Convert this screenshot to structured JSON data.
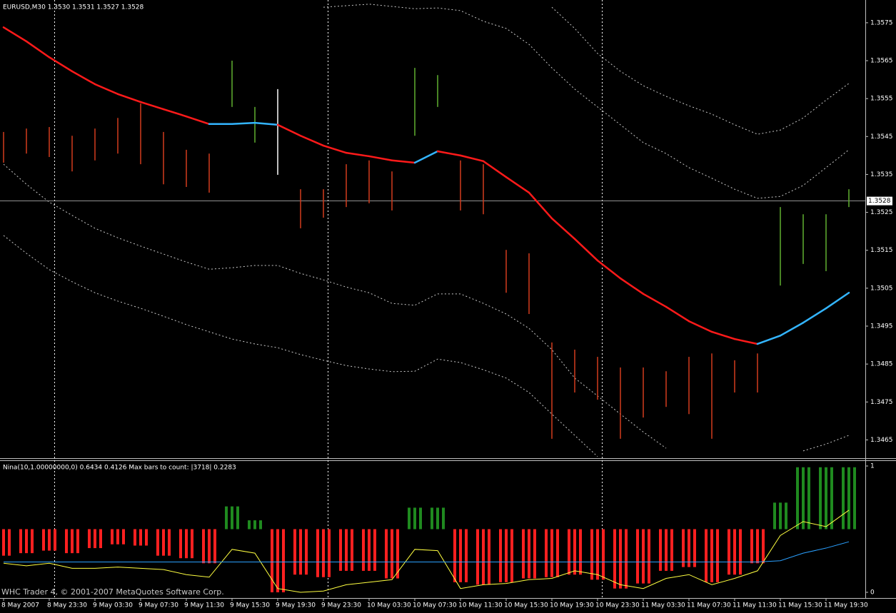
{
  "chart_data": [
    {
      "type": "ohlc",
      "title": "EURUSD,M30  1.3530 1.3531 1.3527 1.3528",
      "categories": [
        "8 May 2007",
        null,
        "8 May 23:30",
        null,
        "9 May 03:30",
        null,
        "9 May 07:30",
        null,
        "9 May 11:30",
        null,
        "9 May 15:30",
        null,
        "9 May 19:30",
        null,
        "9 May 23:30",
        null,
        "10 May 03:30",
        null,
        "10 May 07:30",
        null,
        "10 May 11:30",
        null,
        "10 May 15:30",
        null,
        "10 May 19:30",
        null,
        "10 May 23:30",
        null,
        "11 May 03:30",
        null,
        "11 May 07:30",
        null,
        "11 May 11:30",
        null,
        "11 May 15:30",
        null,
        "11 May 19:30",
        null
      ],
      "high": [
        1.35462,
        1.35471,
        1.35475,
        1.35452,
        1.35471,
        1.35499,
        1.35537,
        1.35462,
        1.35415,
        1.35405,
        1.3565,
        1.35528,
        1.35575,
        1.35311,
        1.35311,
        1.35377,
        1.35387,
        1.35358,
        1.35631,
        1.35612,
        1.35387,
        1.35377,
        1.35151,
        1.35142,
        1.34907,
        1.34888,
        1.34869,
        1.34841,
        1.34841,
        1.34831,
        1.34869,
        1.34878,
        1.3486,
        1.34878,
        1.35264,
        1.35245,
        1.35245,
        1.35311
      ],
      "low": [
        1.35381,
        1.35405,
        1.35396,
        1.35358,
        1.35387,
        1.35405,
        1.35377,
        1.35324,
        1.35317,
        1.35302,
        1.35528,
        1.35434,
        1.35349,
        1.35208,
        1.35236,
        1.35264,
        1.35274,
        1.35255,
        1.35452,
        1.35528,
        1.35255,
        1.35245,
        1.35038,
        1.34982,
        1.34653,
        1.34775,
        1.34756,
        1.34653,
        1.34709,
        1.34737,
        1.34718,
        1.34653,
        1.34775,
        1.34775,
        1.35057,
        1.35114,
        1.35095,
        1.35264
      ],
      "bar_colors": [
        "#d23c1e",
        "#d23c1e",
        "#d23c1e",
        "#d23c1e",
        "#d23c1e",
        "#d23c1e",
        "#d23c1e",
        "#d23c1e",
        "#d23c1e",
        "#d23c1e",
        "#60b030",
        "#60b030",
        "#ffffff",
        "#d23c1e",
        "#d23c1e",
        "#d23c1e",
        "#d23c1e",
        "#d23c1e",
        "#60b030",
        "#60b030",
        "#d23c1e",
        "#d23c1e",
        "#d23c1e",
        "#d23c1e",
        "#d23c1e",
        "#d23c1e",
        "#d23c1e",
        "#d23c1e",
        "#d23c1e",
        "#d23c1e",
        "#d23c1e",
        "#d23c1e",
        "#d23c1e",
        "#d23c1e",
        "#60b030",
        "#60b030",
        "#60b030",
        "#60b030"
      ],
      "ylim": [
        1.346,
        1.3581
      ],
      "yticks": [
        1.3575,
        1.3565,
        1.3555,
        1.3545,
        1.3535,
        1.3525,
        1.3515,
        1.3505,
        1.3495,
        1.3485,
        1.3475,
        1.3465
      ],
      "last_price": 1.3528,
      "last_price_color": "#c0c0c0",
      "lines": [
        {
          "color": "#ff1a1a",
          "style": "solid",
          "values": [
            1.35738,
            1.35701,
            1.35659,
            1.35622,
            1.35588,
            1.35562,
            1.35541,
            1.35522,
            1.35503,
            1.35483,
            1.35483,
            1.35486,
            1.35481,
            1.35452,
            1.35426,
            1.35407,
            1.35398,
            1.35387,
            1.35381,
            1.35411,
            1.354,
            1.35385,
            1.35343,
            1.35302,
            1.35234,
            1.3518,
            1.35123,
            1.35076,
            1.35035,
            1.35001,
            1.34963,
            1.34935,
            1.34916,
            1.34903,
            1.34925,
            1.34959,
            1.34997,
            1.35038
          ],
          "segment_colors": [
            "#ff1a1a",
            "#ff1a1a",
            "#ff1a1a",
            "#ff1a1a",
            "#ff1a1a",
            "#ff1a1a",
            "#ff1a1a",
            "#ff1a1a",
            "#ff1a1a",
            "#33b5ff",
            "#33b5ff",
            "#33b5ff",
            "#ff1a1a",
            "#ff1a1a",
            "#ff1a1a",
            "#ff1a1a",
            "#ff1a1a",
            "#ff1a1a",
            "#33b5ff",
            "#ff1a1a",
            "#ff1a1a",
            "#ff1a1a",
            "#ff1a1a",
            "#ff1a1a",
            "#ff1a1a",
            "#ff1a1a",
            "#ff1a1a",
            "#ff1a1a",
            "#ff1a1a",
            "#ff1a1a",
            "#ff1a1a",
            "#ff1a1a",
            "#ff1a1a",
            "#33b5ff",
            "#33b5ff",
            "#33b5ff",
            "#33b5ff",
            "#33b5ff"
          ]
        },
        {
          "color": "#c8c8c8",
          "style": "dotted",
          "values": [
            null,
            null,
            null,
            null,
            null,
            null,
            null,
            null,
            null,
            null,
            null,
            null,
            null,
            null,
            1.35791,
            1.35795,
            1.35799,
            1.35793,
            1.35787,
            1.35789,
            1.35782,
            1.35754,
            1.35735,
            1.35693,
            1.35631,
            1.35575,
            1.35528,
            1.35481,
            1.35434,
            1.35405,
            1.35368,
            1.3534,
            1.35311,
            1.35287,
            1.35292,
            1.35321,
            1.35368,
            1.35415
          ]
        },
        {
          "color": "#c8c8c8",
          "style": "dotted",
          "values": [
            null,
            null,
            null,
            null,
            null,
            null,
            null,
            null,
            null,
            null,
            null,
            null,
            null,
            null,
            null,
            null,
            null,
            null,
            null,
            null,
            null,
            null,
            null,
            null,
            1.35791,
            1.35735,
            1.35669,
            1.35622,
            1.35584,
            1.35556,
            1.35531,
            1.35509,
            1.35481,
            1.35456,
            1.35467,
            1.35499,
            1.35546,
            1.3559
          ]
        },
        {
          "color": "#c8c8c8",
          "style": "dotted",
          "values": [
            1.35377,
            1.35324,
            1.35277,
            1.35242,
            1.35208,
            1.35183,
            1.35161,
            1.3514,
            1.35119,
            1.351,
            1.35104,
            1.3511,
            1.3511,
            1.35089,
            1.35072,
            1.35053,
            1.35038,
            1.3501,
            1.35005,
            1.35035,
            1.35035,
            1.3501,
            1.34982,
            1.34944,
            1.34888,
            1.34813,
            1.34766,
            1.34718,
            1.34671,
            1.34628,
            null,
            null,
            null,
            null,
            null,
            1.34621,
            1.34639,
            1.34662
          ]
        },
        {
          "color": "#c8c8c8",
          "style": "dotted",
          "values": [
            1.35189,
            1.35142,
            1.35099,
            1.35067,
            1.35038,
            1.35016,
            1.34997,
            1.34976,
            1.34954,
            1.34935,
            1.34916,
            1.34903,
            1.34893,
            1.34875,
            1.3486,
            1.34846,
            1.34837,
            1.3483,
            1.34831,
            1.34863,
            1.34854,
            1.34835,
            1.34813,
            1.34775,
            1.34718,
            1.34662,
            1.34606,
            null,
            null,
            null,
            null,
            null,
            null,
            null,
            null,
            null,
            null,
            null
          ]
        }
      ]
    },
    {
      "type": "oscillator",
      "title": "Nina(10,1.00000000,0) 0.6434 0.4126  Max bars to count: |3718|  0.2283",
      "ylim": [
        0,
        1
      ],
      "yticks": [
        1,
        0
      ],
      "values": [
        0.29,
        0.31,
        0.33,
        0.31,
        0.35,
        0.38,
        0.37,
        0.29,
        0.27,
        0.23,
        0.68,
        0.57,
        0,
        0.14,
        0.12,
        0.17,
        0.17,
        0.11,
        0.67,
        0.67,
        0.08,
        0.06,
        0.08,
        0.11,
        0.12,
        0.14,
        0.1,
        0.03,
        0.07,
        0.17,
        0.2,
        0.08,
        0.14,
        0.23,
        0.71,
        0.99,
        0.99,
        0.99
      ],
      "up_color": "#1f8a1f",
      "down_color": "#ff2020",
      "lines": [
        {
          "color": "#ffff40",
          "style": "solid",
          "values": [
            0.23,
            0.21,
            0.23,
            0.19,
            0.19,
            0.2,
            0.19,
            0.18,
            0.14,
            0.12,
            0.34,
            0.31,
            0.03,
            0,
            0.01,
            0.06,
            0.08,
            0.1,
            0.34,
            0.33,
            0.03,
            0.06,
            0.07,
            0.1,
            0.11,
            0.17,
            0.14,
            0.06,
            0.03,
            0.11,
            0.14,
            0.06,
            0.11,
            0.17,
            0.45,
            0.56,
            0.52,
            0.65
          ]
        },
        {
          "color": "#2aa0ff",
          "style": "solid",
          "values": [
            0.24,
            0.24,
            0.24,
            0.24,
            0.24,
            0.24,
            0.24,
            0.24,
            0.24,
            0.24,
            0.24,
            0.24,
            0.24,
            0.24,
            0.24,
            0.24,
            0.24,
            0.24,
            0.24,
            0.24,
            0.24,
            0.24,
            0.24,
            0.24,
            0.24,
            0.24,
            0.24,
            0.24,
            0.24,
            0.24,
            0.24,
            0.24,
            0.24,
            0.24,
            0.25,
            0.31,
            0.35,
            0.4
          ]
        }
      ]
    }
  ],
  "footer": "WHC Trader 4, © 2001-2007 MetaQuotes Software Corp."
}
